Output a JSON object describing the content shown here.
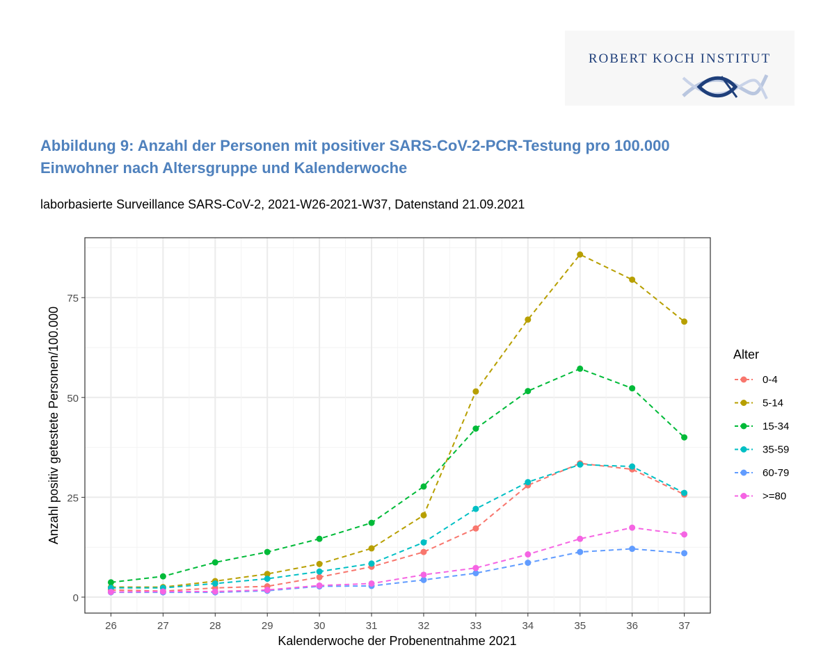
{
  "header": {
    "logo_text": "ROBERT KOCH INSTITUT",
    "title_line1": "Abbildung 9: Anzahl der Personen mit positiver SARS-CoV-2-PCR-Testung pro 100.000",
    "title_line2": "Einwohner nach Altersgruppe und Kalenderwoche",
    "subtitle": "laborbasierte Surveillance SARS-CoV-2, 2021-W26-2021-W37, Datenstand 21.09.2021"
  },
  "chart_data": {
    "type": "line",
    "line_style": "dashed",
    "markers": true,
    "xlabel": "Kalenderwoche der Probenentnahme 2021",
    "ylabel": "Anzahl positiv getestete Personen/100.000",
    "x": [
      26,
      27,
      28,
      29,
      30,
      31,
      32,
      33,
      34,
      35,
      36,
      37
    ],
    "xlim": [
      25.5,
      37.5
    ],
    "ylim": [
      -4,
      90
    ],
    "yticks": [
      0,
      25,
      50,
      75
    ],
    "grid": true,
    "legend_title": "Alter",
    "legend_position": "right",
    "series": [
      {
        "name": "0-4",
        "color": "#F8766D",
        "values": [
          1.8,
          1.5,
          2.3,
          2.7,
          5.0,
          7.6,
          11.3,
          17.2,
          28.0,
          33.5,
          32.0,
          25.7
        ]
      },
      {
        "name": "5-14",
        "color": "#B79F00",
        "values": [
          2.5,
          2.5,
          4.0,
          5.8,
          8.3,
          12.2,
          20.5,
          51.5,
          69.5,
          85.8,
          79.5,
          69.0
        ]
      },
      {
        "name": "15-34",
        "color": "#00BA38",
        "values": [
          3.7,
          5.2,
          8.7,
          11.3,
          14.6,
          18.6,
          27.7,
          42.2,
          51.6,
          57.2,
          52.3,
          40.0
        ]
      },
      {
        "name": "35-59",
        "color": "#00BFC4",
        "values": [
          2.3,
          2.3,
          3.4,
          4.6,
          6.4,
          8.4,
          13.7,
          22.1,
          28.8,
          33.2,
          32.7,
          26.1
        ]
      },
      {
        "name": "60-79",
        "color": "#619CFF",
        "values": [
          1.2,
          1.2,
          1.2,
          1.6,
          2.7,
          2.8,
          4.3,
          6.0,
          8.6,
          11.3,
          12.1,
          11.0
        ]
      },
      {
        "name": ">=80",
        "color": "#F564E3",
        "values": [
          1.3,
          1.4,
          1.4,
          1.8,
          2.9,
          3.4,
          5.6,
          7.3,
          10.7,
          14.6,
          17.4,
          15.7
        ]
      }
    ]
  }
}
